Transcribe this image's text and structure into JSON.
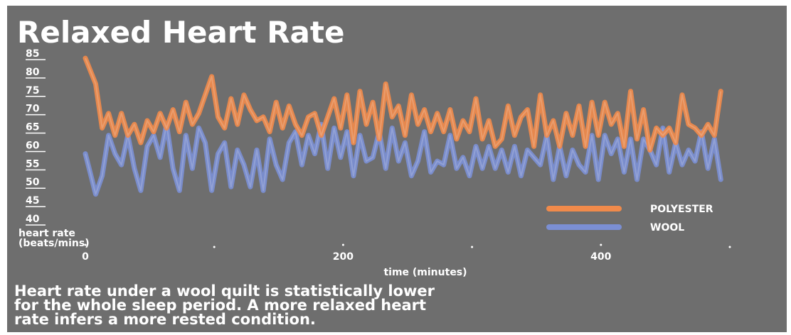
{
  "chart_data": {
    "type": "line",
    "title": "Relaxed Heart Rate",
    "ylabel_lines": [
      "heart rate",
      "(beats/mins)"
    ],
    "xlabel": "time (minutes)",
    "ylim": [
      40,
      85
    ],
    "xlim": [
      0,
      500
    ],
    "yticks": [
      "85",
      "80",
      "75",
      "70",
      "65",
      "60",
      "55",
      "50",
      "45",
      "40"
    ],
    "xticks": [
      {
        "value": 0,
        "label": "0"
      },
      {
        "value": 200,
        "label": "200"
      },
      {
        "value": 400,
        "label": "400"
      }
    ],
    "xminor": [
      100,
      300,
      500
    ],
    "grid": false,
    "legend_position": "bottom-right",
    "colors": {
      "polyester": "#f08a4b",
      "wool": "#7b8fd4"
    },
    "series": [
      {
        "name": "POLYESTER",
        "color": "#f08a4b",
        "x": [
          0,
          8,
          13,
          18,
          23,
          28,
          33,
          38,
          43,
          48,
          53,
          58,
          63,
          68,
          73,
          78,
          83,
          88,
          93,
          98,
          103,
          108,
          113,
          118,
          123,
          128,
          133,
          138,
          143,
          148,
          153,
          158,
          163,
          168,
          173,
          178,
          183,
          188,
          193,
          198,
          203,
          208,
          213,
          218,
          223,
          228,
          233,
          238,
          243,
          248,
          253,
          258,
          263,
          268,
          273,
          278,
          283,
          288,
          293,
          298,
          303,
          308,
          313,
          318,
          323,
          328,
          333,
          338,
          343,
          348,
          353,
          358,
          363,
          368,
          373,
          378,
          383,
          388,
          393,
          398,
          403,
          408,
          413,
          418,
          423,
          428,
          433,
          438,
          443,
          448,
          453,
          458,
          463,
          468,
          473,
          478,
          483,
          488,
          493
        ],
        "y": [
          85,
          78,
          66,
          70,
          64,
          70,
          64,
          67,
          62,
          68,
          65,
          70,
          66,
          71,
          65,
          73,
          67,
          70,
          75,
          80,
          69,
          66,
          74,
          67,
          75,
          71,
          68,
          69,
          65,
          73,
          66,
          72,
          67,
          64,
          69,
          70,
          64,
          69,
          74,
          66,
          75,
          62,
          76,
          67,
          73,
          63,
          78,
          69,
          72,
          64,
          75,
          67,
          71,
          65,
          70,
          65,
          71,
          63,
          68,
          65,
          74,
          63,
          68,
          61,
          63,
          72,
          64,
          69,
          71,
          61,
          75,
          64,
          68,
          61,
          70,
          64,
          72,
          61,
          73,
          64,
          73,
          67,
          70,
          61,
          76,
          63,
          71,
          60,
          66,
          64,
          66,
          62,
          75,
          67,
          66,
          64,
          67,
          64,
          76
        ]
      },
      {
        "name": "WOOL",
        "color": "#7b8fd4",
        "x": [
          0,
          8,
          13,
          18,
          23,
          28,
          33,
          38,
          43,
          48,
          53,
          58,
          63,
          68,
          73,
          78,
          83,
          88,
          93,
          98,
          103,
          108,
          113,
          118,
          123,
          128,
          133,
          138,
          143,
          148,
          153,
          158,
          163,
          168,
          173,
          178,
          183,
          188,
          193,
          198,
          203,
          208,
          213,
          218,
          223,
          228,
          233,
          238,
          243,
          248,
          253,
          258,
          263,
          268,
          273,
          278,
          283,
          288,
          293,
          298,
          303,
          308,
          313,
          318,
          323,
          328,
          333,
          338,
          343,
          348,
          353,
          358,
          363,
          368,
          373,
          378,
          383,
          388,
          393,
          398,
          403,
          408,
          413,
          418,
          423,
          428,
          433,
          438,
          443,
          448,
          453,
          458,
          463,
          468,
          473,
          478,
          483,
          488,
          493
        ],
        "y": [
          59,
          48,
          53,
          64,
          59,
          56,
          64,
          55,
          49,
          61,
          64,
          58,
          67,
          55,
          49,
          64,
          55,
          66,
          62,
          49,
          59,
          62,
          50,
          60,
          56,
          50,
          60,
          49,
          63,
          56,
          52,
          62,
          65,
          56,
          64,
          59,
          67,
          55,
          66,
          58,
          65,
          53,
          64,
          57,
          58,
          65,
          55,
          66,
          57,
          62,
          53,
          57,
          65,
          54,
          57,
          56,
          64,
          55,
          58,
          53,
          61,
          55,
          61,
          55,
          60,
          54,
          61,
          53,
          60,
          58,
          56,
          64,
          52,
          61,
          53,
          60,
          56,
          54,
          64,
          52,
          64,
          59,
          63,
          54,
          63,
          52,
          63,
          60,
          56,
          66,
          54,
          62,
          56,
          60,
          57,
          65,
          55,
          63,
          52
        ]
      }
    ],
    "caption_lines": [
      "Heart rate under a wool quilt is statistically lower",
      "for the whole sleep period. A more relaxed heart",
      "rate infers a more rested condition."
    ]
  }
}
